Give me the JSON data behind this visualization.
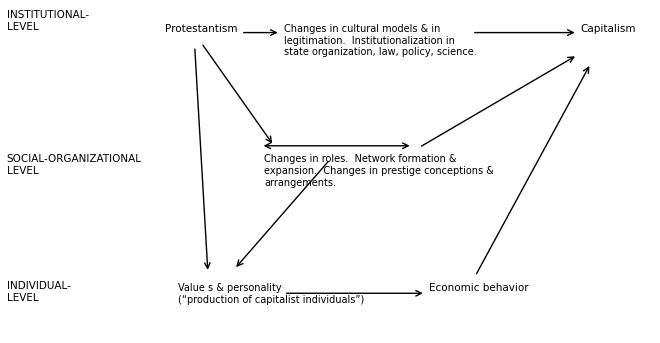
{
  "bg_color": "#ffffff",
  "figsize": [
    6.6,
    3.43
  ],
  "dpi": 100,
  "labels": {
    "institutional_level": "INSTITUTIONAL-\nLEVEL",
    "social_org_level": "SOCIAL-ORGANIZATIONAL\nLEVEL",
    "individual_level": "INDIVIDUAL-\nLEVEL",
    "protestantism": "Protestantism",
    "capitalism": "Capitalism",
    "cultural_models": "Changes in cultural models & in\nlegitimation.  Institutionalization in\nstate organization, law, policy, science.",
    "roles": "Changes in roles.  Network formation &\nexpansion.  Changes in prestige conceptions &\narrangements.",
    "values": "Value s & personality\n(“production of capitalist individuals”)",
    "economic_behavior": "Economic behavior"
  },
  "font_size": 7.5,
  "font_size_small": 7,
  "arrow_color": "#000000",
  "text_color": "#000000"
}
